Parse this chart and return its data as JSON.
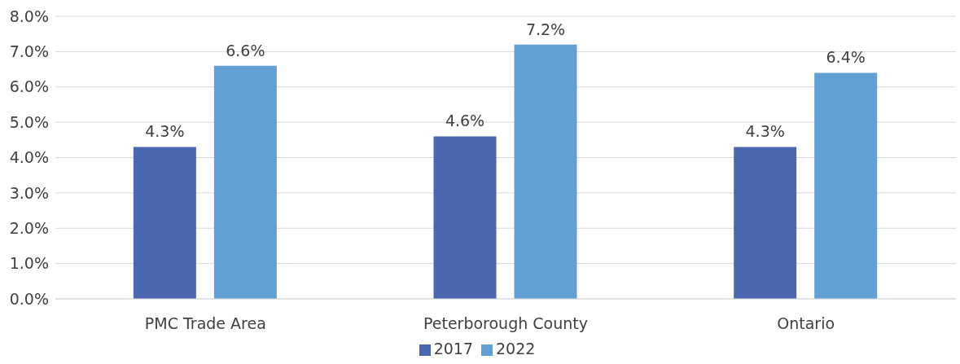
{
  "chart_data": {
    "type": "bar",
    "categories": [
      "PMC Trade Area",
      "Peterborough County",
      "Ontario"
    ],
    "series": [
      {
        "name": "2017",
        "color": "#4a67b0",
        "values": [
          4.3,
          4.6,
          4.3
        ],
        "value_labels": [
          "4.3%",
          "4.6%",
          "4.3%"
        ]
      },
      {
        "name": "2022",
        "color": "#619fd4",
        "values": [
          6.6,
          7.2,
          6.4
        ],
        "value_labels": [
          "6.6%",
          "7.2%",
          "6.4%"
        ]
      }
    ],
    "ylim": [
      0,
      8
    ],
    "yticks": [
      {
        "value": 0,
        "label": "0.0%"
      },
      {
        "value": 1,
        "label": "1.0%"
      },
      {
        "value": 2,
        "label": "2.0%"
      },
      {
        "value": 3,
        "label": "3.0%"
      },
      {
        "value": 4,
        "label": "4.0%"
      },
      {
        "value": 5,
        "label": "5.0%"
      },
      {
        "value": 6,
        "label": "6.0%"
      },
      {
        "value": 7,
        "label": "7.0%"
      },
      {
        "value": 8,
        "label": "8.0%"
      }
    ],
    "grid": "y",
    "legend": "bottom"
  }
}
